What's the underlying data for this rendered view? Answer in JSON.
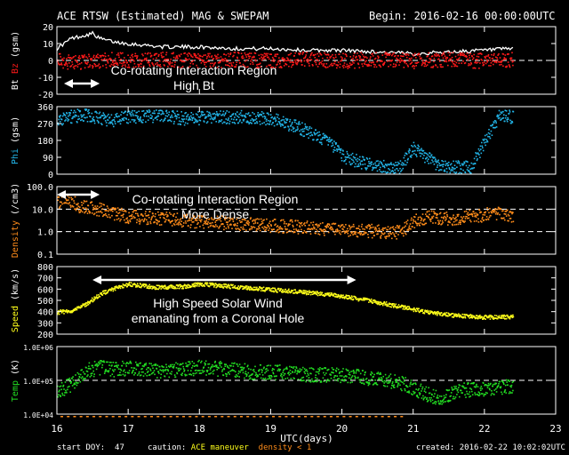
{
  "header": {
    "title": "ACE RTSW (Estimated) MAG & SWEPAM",
    "begin": "Begin: 2016-02-16 00:00:00UTC"
  },
  "footer": {
    "start_doy_label": "start DOY:",
    "start_doy": "47",
    "caution_label": "caution:",
    "caution_maneuver": "ACE maneuver",
    "caution_density": "density < 1",
    "created": "created: 2016-02-22 10:02:02UTC"
  },
  "colors": {
    "background": "#000000",
    "frame": "#ffffff",
    "bt_bz_bt": "#ffffff",
    "bt_bz_bz": "#ff1a1a",
    "phi": "#22b5e8",
    "density": "#ff8c1a",
    "speed": "#ffff1a",
    "temp": "#22dd22",
    "maneuver": "#ffffff",
    "density_caution": "#ff8c1a"
  },
  "annotations": [
    {
      "panel": 0,
      "lines": [
        "Co-rotating Interaction Region",
        "High Bt"
      ],
      "arrow": [
        16.1,
        16.6
      ]
    },
    {
      "panel": 2,
      "lines": [
        "Co-rotating Interaction Region",
        "More Dense"
      ],
      "arrow": [
        16.0,
        16.6
      ]
    },
    {
      "panel": 3,
      "lines": [
        "High Speed Solar Wind",
        "emanating from a Coronal Hole"
      ],
      "arrow": [
        16.5,
        20.2
      ]
    }
  ],
  "chart_data": {
    "type": "scatter",
    "xlabel": "UTC(days)",
    "x_ticks": [
      "16",
      "17",
      "18",
      "19",
      "20",
      "21",
      "22",
      "23"
    ],
    "xlim": [
      16,
      23
    ],
    "panels": [
      {
        "ylabel_parts": [
          "Bt",
          "Bz",
          "(gsm)"
        ],
        "ylabel_colors": [
          "bt_bz_bt",
          "bt_bz_bz",
          "frame"
        ],
        "scale": "linear",
        "ylim": [
          -20,
          20
        ],
        "yticks": [
          "-20",
          "-10",
          "0",
          "10",
          "20"
        ],
        "yticks_values": [
          -20,
          -10,
          0,
          10,
          20
        ],
        "dashed": [
          0
        ],
        "series": [
          {
            "color": "bt_bz_bt",
            "style": "line",
            "x": [
              16.0,
              16.1,
              16.2,
              16.3,
              16.4,
              16.5,
              16.6,
              16.8,
              17.0,
              17.5,
              18.0,
              18.5,
              19.0,
              19.5,
              20.0,
              20.5,
              21.0,
              21.5,
              22.0,
              22.4
            ],
            "y": [
              7,
              10,
              13,
              14,
              15,
              16,
              13,
              11,
              10,
              8,
              8,
              7,
              7,
              6,
              6,
              5,
              4,
              5,
              6,
              7
            ]
          },
          {
            "color": "bt_bz_bz",
            "style": "points",
            "spread": 4.5,
            "x": [
              16.0,
              16.2,
              16.4,
              16.6,
              16.8,
              17.0,
              17.5,
              18.0,
              18.5,
              19.0,
              19.5,
              20.0,
              20.5,
              21.0,
              21.5,
              22.0,
              22.4
            ],
            "y": [
              0,
              -1,
              0,
              0,
              1,
              0,
              1,
              0,
              1,
              0,
              1,
              0,
              1,
              0,
              1,
              0,
              1
            ]
          }
        ]
      },
      {
        "ylabel_parts": [
          "Phi",
          "(gsm)"
        ],
        "ylabel_colors": [
          "phi",
          "frame"
        ],
        "scale": "linear",
        "ylim": [
          0,
          360
        ],
        "yticks": [
          "0",
          "90",
          "180",
          "270",
          "360"
        ],
        "yticks_values": [
          0,
          90,
          180,
          270,
          360
        ],
        "dashed": [],
        "series": [
          {
            "color": "phi",
            "style": "points",
            "spread": 35,
            "x": [
              16.0,
              16.2,
              16.4,
              16.6,
              16.8,
              17.0,
              17.4,
              17.8,
              18.2,
              18.6,
              19.0,
              19.4,
              19.8,
              20.0,
              20.3,
              20.6,
              20.8,
              21.0,
              21.4,
              21.8,
              22.2,
              22.4
            ],
            "y": [
              290,
              310,
              320,
              300,
              290,
              310,
              315,
              300,
              305,
              310,
              300,
              250,
              180,
              100,
              60,
              45,
              40,
              140,
              40,
              40,
              310,
              310
            ]
          }
        ]
      },
      {
        "ylabel_parts": [
          "Density",
          "(/cm3)"
        ],
        "ylabel_colors": [
          "density",
          "frame"
        ],
        "scale": "log",
        "ylim": [
          0.1,
          100
        ],
        "yticks": [
          "0.1",
          "1.0",
          "10.0",
          "100.0"
        ],
        "yticks_values": [
          0.1,
          1,
          10,
          100
        ],
        "dashed": [
          1,
          10
        ],
        "series": [
          {
            "color": "density",
            "style": "points",
            "spread": 0.3,
            "x": [
              16.0,
              16.1,
              16.2,
              16.3,
              16.5,
              16.7,
              17.0,
              17.5,
              18.0,
              18.5,
              19.0,
              19.5,
              20.0,
              20.5,
              20.8,
              21.0,
              21.2,
              21.5,
              21.8,
              22.0,
              22.2,
              22.4
            ],
            "y": [
              20,
              30,
              25,
              15,
              12,
              8,
              5,
              4,
              3,
              2.5,
              2,
              1.6,
              1.3,
              1.1,
              1.0,
              3,
              5,
              4,
              5,
              6,
              7,
              5
            ]
          }
        ]
      },
      {
        "ylabel_parts": [
          "Speed",
          "(km/s)"
        ],
        "ylabel_colors": [
          "speed",
          "frame"
        ],
        "scale": "linear",
        "ylim": [
          200,
          800
        ],
        "yticks": [
          "200",
          "300",
          "400",
          "500",
          "600",
          "700",
          "800"
        ],
        "yticks_values": [
          200,
          300,
          400,
          500,
          600,
          700,
          800
        ],
        "dashed": [],
        "series": [
          {
            "color": "speed",
            "style": "points",
            "spread": 18,
            "x": [
              16.0,
              16.2,
              16.4,
              16.6,
              16.8,
              17.0,
              17.4,
              17.8,
              18.0,
              18.2,
              18.6,
              19.0,
              19.4,
              19.8,
              20.0,
              20.4,
              20.8,
              21.2,
              21.6,
              22.0,
              22.4
            ],
            "y": [
              400,
              410,
              470,
              560,
              610,
              650,
              620,
              630,
              650,
              640,
              620,
              600,
              580,
              560,
              540,
              500,
              450,
              400,
              370,
              355,
              360
            ]
          }
        ]
      },
      {
        "ylabel_parts": [
          "Temp",
          "(K)"
        ],
        "ylabel_colors": [
          "temp",
          "frame"
        ],
        "scale": "log",
        "ylim": [
          10000,
          1000000
        ],
        "yticks": [
          "1.0E+04",
          "1.0E+05",
          "1.0E+06"
        ],
        "yticks_values": [
          10000,
          100000,
          1000000
        ],
        "dashed": [
          100000
        ],
        "series": [
          {
            "color": "temp",
            "style": "points",
            "spread": 0.22,
            "x": [
              16.0,
              16.2,
              16.4,
              16.6,
              16.8,
              17.0,
              17.4,
              17.8,
              18.0,
              18.4,
              18.8,
              19.2,
              19.6,
              20.0,
              20.4,
              20.8,
              21.0,
              21.2,
              21.4,
              21.6,
              22.0,
              22.4
            ],
            "y": [
              50000,
              80000,
              200000,
              250000,
              220000,
              240000,
              200000,
              220000,
              250000,
              220000,
              180000,
              180000,
              150000,
              150000,
              120000,
              90000,
              60000,
              40000,
              30000,
              50000,
              60000,
              70000
            ]
          }
        ]
      }
    ]
  }
}
